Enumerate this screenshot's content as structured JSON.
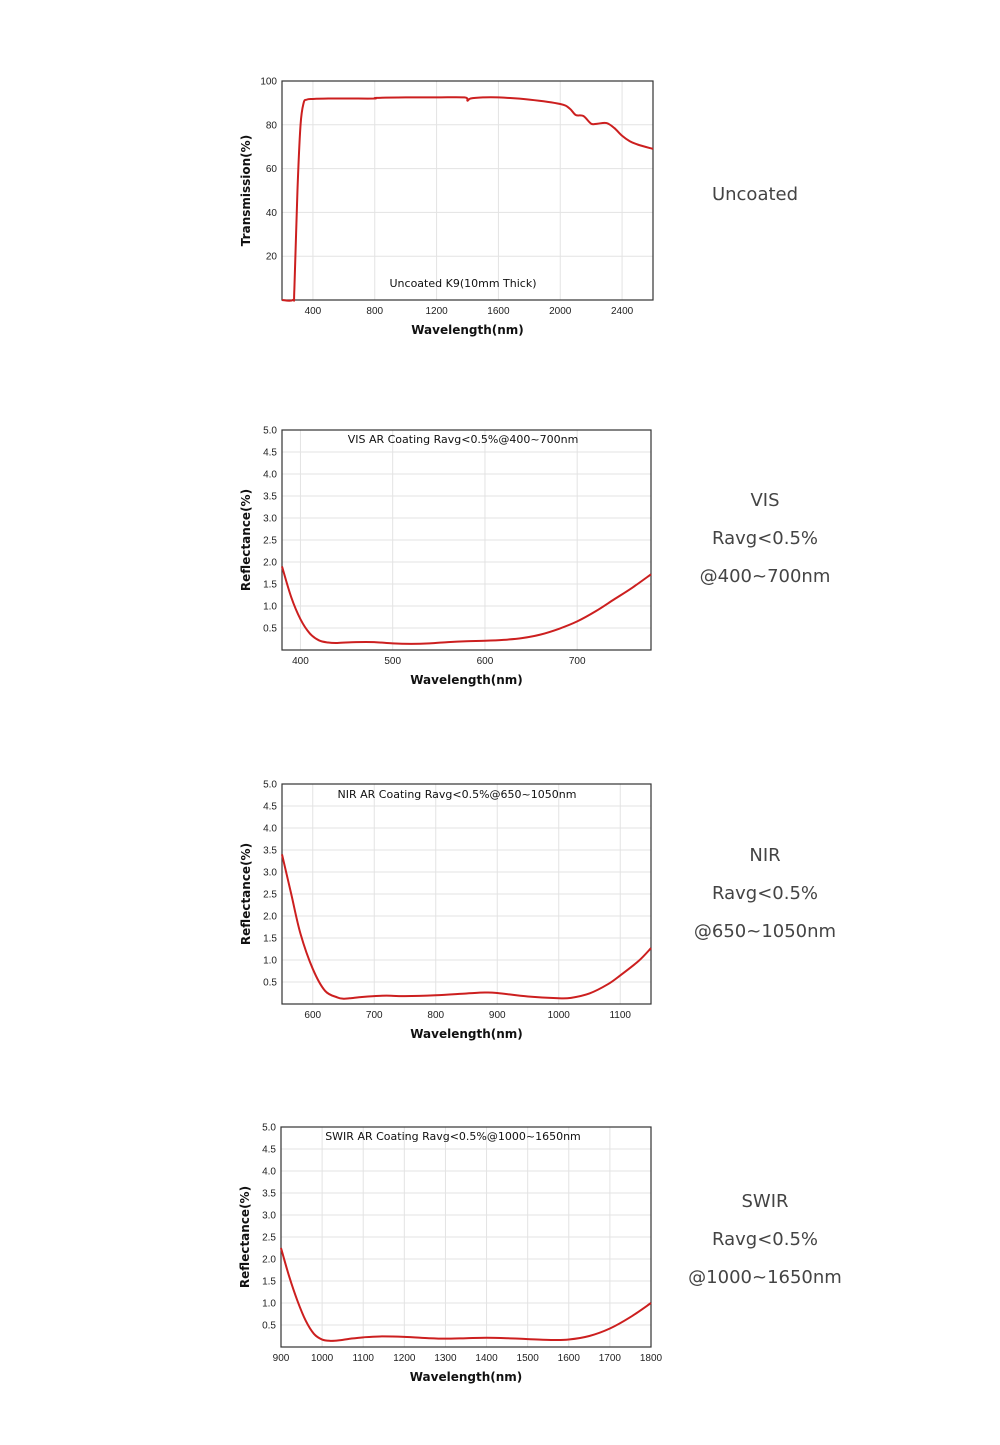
{
  "chart_data": [
    {
      "type": "line",
      "title": "Uncoated K9(10mm Thick)",
      "xlabel": "Wavelength(nm)",
      "ylabel": "Transmission(%)",
      "xlim": [
        200,
        2600
      ],
      "ylim": [
        0,
        100
      ],
      "xticks": [
        400,
        800,
        1200,
        1600,
        2000,
        2400
      ],
      "yticks": [
        20,
        40,
        60,
        80,
        100
      ],
      "grid": true,
      "series": [
        {
          "color": "#cc1f1f",
          "x": [
            200,
            270,
            280,
            300,
            320,
            340,
            360,
            400,
            500,
            600,
            650,
            800,
            810,
            1000,
            1200,
            1380,
            1400,
            1420,
            1500,
            1600,
            1800,
            2000,
            2060,
            2100,
            2150,
            2200,
            2240,
            2300,
            2350,
            2400,
            2450,
            2500,
            2600
          ],
          "y": [
            0,
            0,
            5,
            50,
            80,
            90,
            91.5,
            91.8,
            92,
            92,
            92,
            92,
            92.3,
            92.5,
            92.5,
            92.5,
            91,
            92,
            92.5,
            92.5,
            91.5,
            89.5,
            87.5,
            84.5,
            84,
            80.5,
            80.5,
            80.8,
            78.5,
            75,
            72.5,
            71,
            69
          ]
        }
      ]
    },
    {
      "type": "line",
      "title": "VIS AR Coating Ravg<0.5%@400~700nm",
      "xlabel": "Wavelength(nm)",
      "ylabel": "Reflectance(%)",
      "xlim": [
        380,
        780
      ],
      "ylim": [
        0,
        5
      ],
      "xticks": [
        400,
        500,
        600,
        700
      ],
      "yticks": [
        0.5,
        1.0,
        1.5,
        2.0,
        2.5,
        3.0,
        3.5,
        4.0,
        4.5,
        5.0
      ],
      "grid": true,
      "series": [
        {
          "color": "#cc1f1f",
          "x": [
            380,
            390,
            400,
            410,
            420,
            430,
            440,
            460,
            480,
            500,
            520,
            540,
            560,
            580,
            600,
            620,
            640,
            660,
            680,
            700,
            720,
            740,
            760,
            780
          ],
          "y": [
            1.9,
            1.2,
            0.7,
            0.38,
            0.22,
            0.17,
            0.16,
            0.18,
            0.18,
            0.15,
            0.14,
            0.15,
            0.18,
            0.2,
            0.21,
            0.23,
            0.27,
            0.35,
            0.48,
            0.65,
            0.88,
            1.15,
            1.42,
            1.72
          ]
        }
      ]
    },
    {
      "type": "line",
      "title": "NIR AR Coating Ravg<0.5%@650~1050nm",
      "xlabel": "Wavelength(nm)",
      "ylabel": "Reflectance(%)",
      "xlim": [
        550,
        1150
      ],
      "ylim": [
        0,
        5
      ],
      "xticks": [
        600,
        700,
        800,
        900,
        1000,
        1100
      ],
      "yticks": [
        0.5,
        1.0,
        1.5,
        2.0,
        2.5,
        3.0,
        3.5,
        4.0,
        4.5,
        5.0
      ],
      "grid": true,
      "series": [
        {
          "color": "#cc1f1f",
          "x": [
            550,
            565,
            580,
            600,
            620,
            640,
            650,
            660,
            680,
            700,
            720,
            750,
            800,
            850,
            880,
            900,
            950,
            1000,
            1020,
            1050,
            1080,
            1100,
            1130,
            1150
          ],
          "y": [
            3.4,
            2.5,
            1.6,
            0.8,
            0.3,
            0.15,
            0.12,
            0.13,
            0.16,
            0.18,
            0.19,
            0.18,
            0.2,
            0.24,
            0.26,
            0.25,
            0.17,
            0.13,
            0.14,
            0.24,
            0.45,
            0.65,
            0.98,
            1.27
          ]
        }
      ]
    },
    {
      "type": "line",
      "title": "SWIR AR Coating Ravg<0.5%@1000~1650nm",
      "xlabel": "Wavelength(nm)",
      "ylabel": "Reflectance(%)",
      "xlim": [
        900,
        1800
      ],
      "ylim": [
        0,
        5
      ],
      "xticks": [
        900,
        1000,
        1100,
        1200,
        1300,
        1400,
        1500,
        1600,
        1700,
        1800
      ],
      "yticks": [
        0.5,
        1.0,
        1.5,
        2.0,
        2.5,
        3.0,
        3.5,
        4.0,
        4.5,
        5.0
      ],
      "grid": true,
      "series": [
        {
          "color": "#cc1f1f",
          "x": [
            900,
            920,
            940,
            960,
            980,
            1000,
            1020,
            1040,
            1070,
            1100,
            1140,
            1200,
            1260,
            1300,
            1350,
            1400,
            1450,
            1500,
            1560,
            1600,
            1650,
            1700,
            1750,
            1800
          ],
          "y": [
            2.25,
            1.6,
            1.05,
            0.6,
            0.3,
            0.17,
            0.14,
            0.15,
            0.19,
            0.22,
            0.24,
            0.23,
            0.2,
            0.19,
            0.2,
            0.21,
            0.2,
            0.18,
            0.16,
            0.17,
            0.25,
            0.42,
            0.68,
            1.0
          ]
        }
      ]
    }
  ],
  "side_labels": [
    {
      "lines": [
        "Uncoated"
      ]
    },
    {
      "lines": [
        "VIS",
        "Ravg<0.5%",
        "@400~700nm"
      ]
    },
    {
      "lines": [
        "NIR",
        "Ravg<0.5%",
        "@650~1050nm"
      ]
    },
    {
      "lines": [
        "SWIR",
        "Ravg<0.5%",
        "@1000~1650nm"
      ]
    }
  ]
}
